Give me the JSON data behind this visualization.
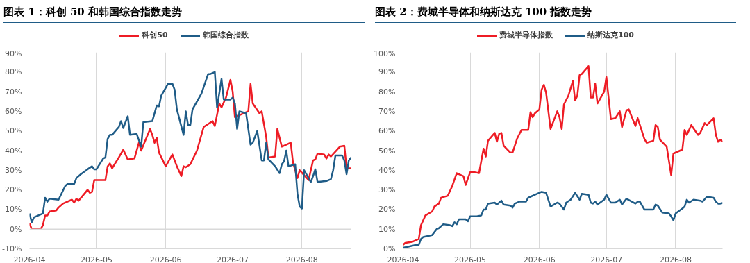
{
  "chart_data": [
    {
      "type": "line",
      "title": "图表 1：科创 50 和韩国综合指数走势",
      "legend": "top",
      "grid": "x",
      "line_style": "solid",
      "xlim": [
        "2026-04-01",
        "2026-08-23"
      ],
      "xticks": [
        "2026-04",
        "2026-05",
        "2026-06",
        "2026-07",
        "2026-08"
      ],
      "ylim": [
        -10,
        90
      ],
      "yticks": [
        {
          "value": -10,
          "label": "-10%"
        },
        {
          "value": 0,
          "label": "0%"
        },
        {
          "value": 10,
          "label": "10%"
        },
        {
          "value": 20,
          "label": "20%"
        },
        {
          "value": 30,
          "label": "30%"
        },
        {
          "value": 40,
          "label": "40%"
        },
        {
          "value": 50,
          "label": "50%"
        },
        {
          "value": 60,
          "label": "60%"
        },
        {
          "value": 70,
          "label": "70%"
        },
        {
          "value": 80,
          "label": "80%"
        },
        {
          "value": 90,
          "label": "90%"
        }
      ],
      "ref_lines": [
        {
          "axis": "y",
          "value": 0,
          "color": "#d9d9d9"
        }
      ],
      "series": [
        {
          "name": "科创50",
          "color": "#ee1c25",
          "x": [
            "2026-04-01",
            "2026-04-02",
            "2026-04-06",
            "2026-04-07",
            "2026-04-08",
            "2026-04-09",
            "2026-04-10",
            "2026-04-13",
            "2026-04-14",
            "2026-04-16",
            "2026-04-20",
            "2026-04-21",
            "2026-04-22",
            "2026-04-23",
            "2026-04-27",
            "2026-04-28",
            "2026-04-29",
            "2026-04-30",
            "2026-05-05",
            "2026-05-06",
            "2026-05-07",
            "2026-05-08",
            "2026-05-11",
            "2026-05-13",
            "2026-05-15",
            "2026-05-18",
            "2026-05-20",
            "2026-05-21",
            "2026-05-25",
            "2026-05-26",
            "2026-05-27",
            "2026-05-28",
            "2026-05-29",
            "2026-06-01",
            "2026-06-04",
            "2026-06-06",
            "2026-06-08",
            "2026-06-09",
            "2026-06-10",
            "2026-06-12",
            "2026-06-15",
            "2026-06-18",
            "2026-06-22",
            "2026-06-23",
            "2026-06-25",
            "2026-06-26",
            "2026-06-28",
            "2026-06-30",
            "2026-07-01",
            "2026-07-02",
            "2026-07-06",
            "2026-07-08",
            "2026-07-09",
            "2026-07-10",
            "2026-07-13",
            "2026-07-14",
            "2026-07-16",
            "2026-07-17",
            "2026-07-20",
            "2026-07-21",
            "2026-07-23",
            "2026-07-27",
            "2026-07-28",
            "2026-07-30",
            "2026-07-31",
            "2026-08-04",
            "2026-08-06",
            "2026-08-07",
            "2026-08-08",
            "2026-08-11",
            "2026-08-12",
            "2026-08-13",
            "2026-08-14",
            "2026-08-18",
            "2026-08-20",
            "2026-08-21",
            "2026-08-23"
          ],
          "values": [
            3,
            0,
            0,
            2,
            7,
            7,
            9,
            9.5,
            11,
            13,
            15,
            13.5,
            15.5,
            14.5,
            20,
            18.5,
            19,
            25,
            25,
            32,
            33.5,
            31,
            36.5,
            40.5,
            35.5,
            36,
            44,
            40,
            51,
            48,
            44,
            46.5,
            39,
            32,
            38,
            32,
            27,
            32,
            31.5,
            33,
            40,
            52,
            55,
            52.5,
            64,
            62,
            67,
            76,
            70,
            57,
            59,
            60,
            74,
            64,
            59,
            60,
            47,
            36.5,
            37,
            51,
            42,
            44,
            34,
            26,
            30,
            25,
            35,
            35.5,
            38.5,
            38,
            36,
            38,
            37,
            42,
            42.5,
            31,
            31
          ]
        },
        {
          "name": "韩国综合指数",
          "color": "#1f5c87",
          "x": [
            "2026-04-01",
            "2026-04-02",
            "2026-04-03",
            "2026-04-07",
            "2026-04-08",
            "2026-04-09",
            "2026-04-10",
            "2026-04-14",
            "2026-04-17",
            "2026-04-18",
            "2026-04-21",
            "2026-04-22",
            "2026-04-24",
            "2026-04-27",
            "2026-04-29",
            "2026-04-30",
            "2026-05-01",
            "2026-05-04",
            "2026-05-05",
            "2026-05-06",
            "2026-05-07",
            "2026-05-08",
            "2026-05-11",
            "2026-05-12",
            "2026-05-13",
            "2026-05-15",
            "2026-05-16",
            "2026-05-19",
            "2026-05-21",
            "2026-05-22",
            "2026-05-26",
            "2026-05-28",
            "2026-05-29",
            "2026-05-30",
            "2026-06-02",
            "2026-06-04",
            "2026-06-05",
            "2026-06-06",
            "2026-06-09",
            "2026-06-10",
            "2026-06-11",
            "2026-06-12",
            "2026-06-13",
            "2026-06-17",
            "2026-06-20",
            "2026-06-21",
            "2026-06-23",
            "2026-06-24",
            "2026-06-26",
            "2026-06-27",
            "2026-06-30",
            "2026-07-01",
            "2026-07-02",
            "2026-07-03",
            "2026-07-04",
            "2026-07-07",
            "2026-07-09",
            "2026-07-10",
            "2026-07-12",
            "2026-07-14",
            "2026-07-15",
            "2026-07-16",
            "2026-07-17",
            "2026-07-20",
            "2026-07-22",
            "2026-07-23",
            "2026-07-24",
            "2026-07-25",
            "2026-07-26",
            "2026-07-29",
            "2026-07-30",
            "2026-07-31",
            "2026-08-01",
            "2026-08-02",
            "2026-08-05",
            "2026-08-06",
            "2026-08-07",
            "2026-08-08",
            "2026-08-12",
            "2026-08-14",
            "2026-08-15",
            "2026-08-16",
            "2026-08-19",
            "2026-08-20",
            "2026-08-21",
            "2026-08-22",
            "2026-08-23"
          ],
          "values": [
            8,
            3.5,
            6,
            8,
            16,
            14,
            15.5,
            15,
            22,
            23,
            23,
            26,
            28,
            30.5,
            32,
            30.5,
            30.5,
            36,
            36.5,
            46,
            48,
            48,
            52,
            55,
            51.5,
            57.5,
            48,
            48.5,
            42,
            54.5,
            55,
            63,
            62.5,
            68,
            74,
            74,
            71,
            61,
            48,
            60,
            53,
            53,
            61,
            69,
            79,
            79,
            80,
            62,
            76.5,
            66,
            66,
            67,
            64,
            51,
            60,
            59,
            43,
            44,
            50,
            35,
            35,
            44,
            35.5,
            32,
            28.5,
            33,
            34.5,
            40,
            32,
            33,
            18,
            11.5,
            10.5,
            30,
            24,
            27,
            30.5,
            24,
            24.5,
            25.5,
            30,
            37.5,
            37.5,
            35,
            28,
            35,
            36.5
          ]
        }
      ]
    },
    {
      "type": "line",
      "title": "图表 2：费城半导体和纳斯达克 100 指数走势",
      "legend": "top",
      "grid": "x",
      "line_style": "solid",
      "xlim": [
        "2026-04-01",
        "2026-08-22"
      ],
      "xticks": [
        "2026-04",
        "2026-05",
        "2026-06",
        "2026-07",
        "2026-08"
      ],
      "ylim": [
        0,
        100
      ],
      "yticks": [
        {
          "value": 0,
          "label": "0%"
        },
        {
          "value": 10,
          "label": "10%"
        },
        {
          "value": 20,
          "label": "20%"
        },
        {
          "value": 30,
          "label": "30%"
        },
        {
          "value": 40,
          "label": "40%"
        },
        {
          "value": 50,
          "label": "50%"
        },
        {
          "value": 60,
          "label": "60%"
        },
        {
          "value": 70,
          "label": "70%"
        },
        {
          "value": 80,
          "label": "80%"
        },
        {
          "value": 90,
          "label": "90%"
        },
        {
          "value": 100,
          "label": "100%"
        }
      ],
      "series": [
        {
          "name": "费城半导体指数",
          "color": "#ee1c25",
          "x": [
            "2026-04-01",
            "2026-04-02",
            "2026-04-05",
            "2026-04-08",
            "2026-04-09",
            "2026-04-11",
            "2026-04-14",
            "2026-04-15",
            "2026-04-17",
            "2026-04-18",
            "2026-04-21",
            "2026-04-23",
            "2026-04-25",
            "2026-04-28",
            "2026-04-29",
            "2026-05-01",
            "2026-05-03",
            "2026-05-05",
            "2026-05-07",
            "2026-05-08",
            "2026-05-09",
            "2026-05-12",
            "2026-05-13",
            "2026-05-14",
            "2026-05-15",
            "2026-05-16",
            "2026-05-19",
            "2026-05-20",
            "2026-05-22",
            "2026-05-24",
            "2026-05-27",
            "2026-05-28",
            "2026-05-29",
            "2026-05-30",
            "2026-06-01",
            "2026-06-02",
            "2026-06-03",
            "2026-06-04",
            "2026-06-06",
            "2026-06-09",
            "2026-06-10",
            "2026-06-11",
            "2026-06-12",
            "2026-06-14",
            "2026-06-16",
            "2026-06-17",
            "2026-06-18",
            "2026-06-19",
            "2026-06-20",
            "2026-06-23",
            "2026-06-24",
            "2026-06-25",
            "2026-06-26",
            "2026-06-27",
            "2026-06-30",
            "2026-07-01",
            "2026-07-03",
            "2026-07-05",
            "2026-07-07",
            "2026-07-08",
            "2026-07-10",
            "2026-07-11",
            "2026-07-14",
            "2026-07-15",
            "2026-07-16",
            "2026-07-18",
            "2026-07-19",
            "2026-07-22",
            "2026-07-23",
            "2026-07-24",
            "2026-07-25",
            "2026-07-28",
            "2026-07-30",
            "2026-07-31",
            "2026-08-03",
            "2026-08-04",
            "2026-08-05",
            "2026-08-06",
            "2026-08-08",
            "2026-08-11",
            "2026-08-12",
            "2026-08-14",
            "2026-08-15",
            "2026-08-18",
            "2026-08-19",
            "2026-08-20",
            "2026-08-21",
            "2026-08-22"
          ],
          "values": [
            2,
            3,
            3.5,
            5,
            12,
            17,
            19,
            21.5,
            23,
            26,
            27,
            32,
            38.5,
            37,
            32.5,
            39,
            39,
            38.5,
            51,
            47,
            55,
            59,
            54.5,
            58.5,
            59,
            52.5,
            49,
            49,
            56,
            60.5,
            60.5,
            69.5,
            67,
            69,
            71,
            81,
            83.5,
            79.5,
            61,
            70,
            67,
            61,
            73.5,
            78,
            85.5,
            75.5,
            78,
            88.5,
            89,
            93,
            77,
            77,
            84,
            74,
            80,
            87.5,
            66,
            66.5,
            70,
            62,
            70.5,
            71,
            62.5,
            66.5,
            63,
            56,
            54,
            55,
            63,
            62,
            55.5,
            52,
            37.5,
            48.5,
            50,
            50.5,
            60.5,
            58,
            63,
            58,
            59,
            64,
            63,
            66.5,
            58,
            54.5,
            55.5,
            54.5
          ]
        },
        {
          "name": "纳斯达克100",
          "color": "#1f5c87",
          "x": [
            "2026-04-01",
            "2026-04-03",
            "2026-04-07",
            "2026-04-08",
            "2026-04-09",
            "2026-04-10",
            "2026-04-14",
            "2026-04-16",
            "2026-04-17",
            "2026-04-19",
            "2026-04-22",
            "2026-04-23",
            "2026-04-24",
            "2026-04-25",
            "2026-04-26",
            "2026-04-29",
            "2026-04-30",
            "2026-05-01",
            "2026-05-04",
            "2026-05-06",
            "2026-05-07",
            "2026-05-08",
            "2026-05-09",
            "2026-05-12",
            "2026-05-13",
            "2026-05-15",
            "2026-05-16",
            "2026-05-19",
            "2026-05-20",
            "2026-05-21",
            "2026-05-23",
            "2026-05-26",
            "2026-05-27",
            "2026-05-28",
            "2026-05-30",
            "2026-06-02",
            "2026-06-04",
            "2026-06-06",
            "2026-06-09",
            "2026-06-10",
            "2026-06-12",
            "2026-06-13",
            "2026-06-15",
            "2026-06-17",
            "2026-06-19",
            "2026-06-20",
            "2026-06-23",
            "2026-06-24",
            "2026-06-25",
            "2026-06-26",
            "2026-06-27",
            "2026-06-30",
            "2026-07-01",
            "2026-07-03",
            "2026-07-05",
            "2026-07-07",
            "2026-07-08",
            "2026-07-10",
            "2026-07-14",
            "2026-07-15",
            "2026-07-16",
            "2026-07-18",
            "2026-07-22",
            "2026-07-23",
            "2026-07-24",
            "2026-07-26",
            "2026-07-29",
            "2026-07-30",
            "2026-07-31",
            "2026-08-01",
            "2026-08-04",
            "2026-08-05",
            "2026-08-06",
            "2026-08-07",
            "2026-08-09",
            "2026-08-12",
            "2026-08-13",
            "2026-08-15",
            "2026-08-18",
            "2026-08-19",
            "2026-08-20",
            "2026-08-21",
            "2026-08-22"
          ],
          "values": [
            0.5,
            1,
            2,
            2,
            5,
            6,
            7,
            10,
            10.5,
            12.5,
            12,
            11.5,
            13.5,
            12.5,
            15,
            15,
            14,
            16.5,
            16.5,
            17,
            20,
            20,
            23,
            23.5,
            22.5,
            24.5,
            22.5,
            22,
            21,
            23,
            24,
            24,
            26,
            26.5,
            27.5,
            29,
            28.5,
            21.5,
            23.5,
            23,
            20,
            23.5,
            25,
            28.5,
            25,
            28,
            27.5,
            23.5,
            23,
            24,
            22.5,
            25,
            27.5,
            23.5,
            23.5,
            25,
            22.5,
            25.5,
            23,
            24,
            24,
            20,
            20,
            22.5,
            22,
            18.5,
            18,
            16.5,
            14.5,
            18,
            20.5,
            21.5,
            25,
            23.5,
            25,
            24.5,
            24,
            26.5,
            26,
            24,
            23,
            23,
            23.5
          ]
        }
      ]
    }
  ]
}
